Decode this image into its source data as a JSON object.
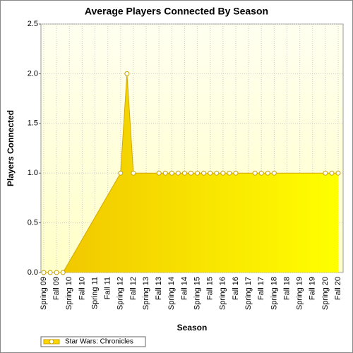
{
  "chart_data": {
    "type": "area",
    "title": "Average Players Connected By Season",
    "x_label": "Season",
    "y_label": "Players Connected",
    "categories": [
      "Spring 09",
      null,
      "Fall 09",
      null,
      "Spring 10",
      null,
      "Fall 10",
      null,
      "Spring 11",
      null,
      "Fall 11",
      null,
      "Spring 12",
      null,
      "Fall 12",
      null,
      "Spring 13",
      null,
      "Fall 13",
      null,
      "Spring 14",
      null,
      "Fall 14",
      null,
      "Spring 15",
      null,
      "Fall 15",
      null,
      "Spring 16",
      null,
      "Fall 16",
      null,
      "Spring 17",
      null,
      "Fall 17",
      null,
      "Spring 18",
      null,
      "Fall 18",
      null,
      "Spring 19",
      null,
      "Fall 19",
      null,
      "Spring 20",
      null,
      "Fall 20"
    ],
    "series": [
      {
        "name": "Star Wars: Chronicles",
        "color": "#ffd700",
        "values": [
          0,
          0,
          0,
          0,
          null,
          null,
          null,
          null,
          null,
          null,
          null,
          null,
          1,
          2,
          1,
          null,
          null,
          null,
          1,
          1,
          1,
          1,
          1,
          1,
          1,
          1,
          1,
          1,
          1,
          1,
          1,
          null,
          null,
          1,
          1,
          1,
          1,
          null,
          null,
          null,
          null,
          null,
          null,
          null,
          1,
          1,
          1
        ]
      }
    ],
    "ylim": [
      0,
      2.5
    ],
    "yticks": [
      {
        "value": 0,
        "label": "0.0"
      },
      0.5,
      {
        "value": 1,
        "label": "1.0"
      },
      1.5,
      {
        "value": 2,
        "label": "2.0"
      },
      2.5
    ],
    "grid": true,
    "legend": "bottom-left"
  }
}
